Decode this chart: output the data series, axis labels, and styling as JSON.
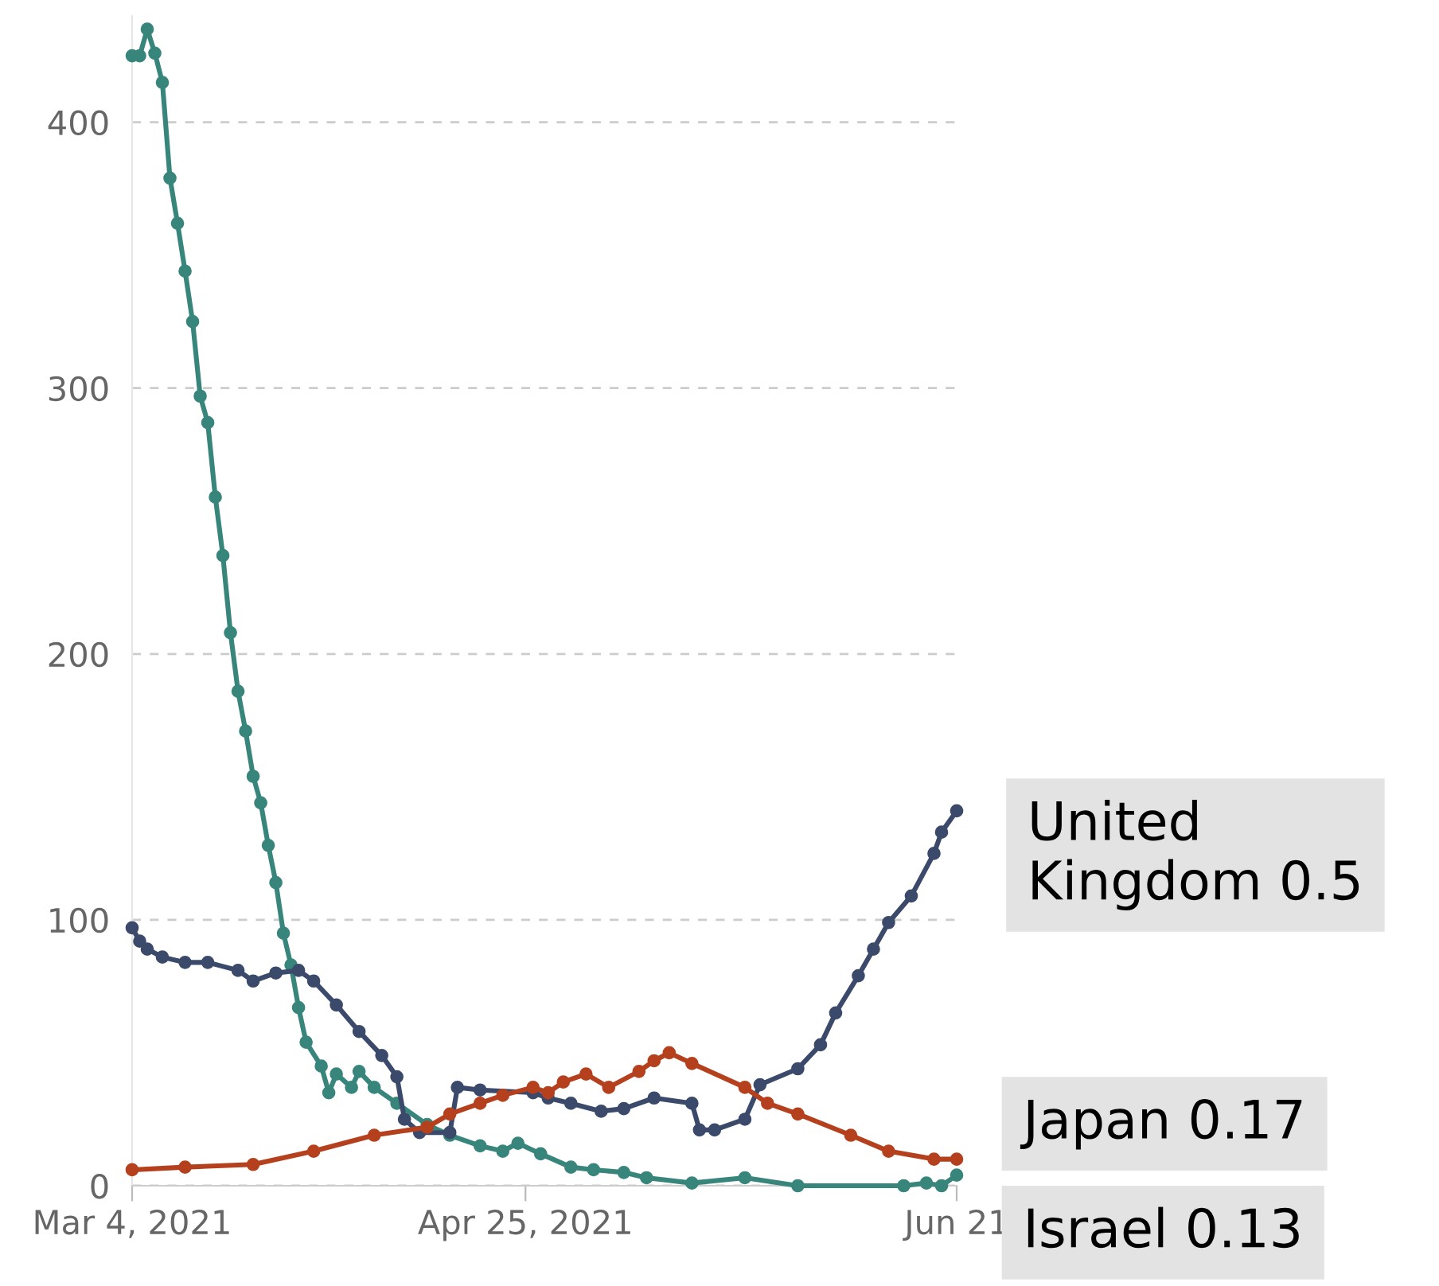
{
  "chart_data": {
    "type": "line",
    "marker": "circle",
    "line_style": "solid",
    "grid": "y",
    "legend": false,
    "xlim": [
      "2021-03-04",
      "2021-06-21"
    ],
    "ylim": [
      0,
      440
    ],
    "xticks": [
      {
        "value": "2021-03-04",
        "label": "Mar 4, 2021"
      },
      {
        "value": "2021-04-25",
        "label": "Apr 25, 2021"
      },
      {
        "value": "2021-06-21",
        "label": "Jun 21"
      }
    ],
    "yticks": [
      0,
      100,
      200,
      300,
      400
    ],
    "series": [
      {
        "color": "#38857c",
        "x": [
          "2021-03-04",
          "2021-03-05",
          "2021-03-06",
          "2021-03-07",
          "2021-03-08",
          "2021-03-09",
          "2021-03-10",
          "2021-03-11",
          "2021-03-12",
          "2021-03-13",
          "2021-03-14",
          "2021-03-15",
          "2021-03-16",
          "2021-03-17",
          "2021-03-18",
          "2021-03-19",
          "2021-03-20",
          "2021-03-21",
          "2021-03-22",
          "2021-03-23",
          "2021-03-24",
          "2021-03-25",
          "2021-03-26",
          "2021-03-27",
          "2021-03-29",
          "2021-03-30",
          "2021-03-31",
          "2021-04-02",
          "2021-04-03",
          "2021-04-05",
          "2021-04-08",
          "2021-04-12",
          "2021-04-15",
          "2021-04-19",
          "2021-04-22",
          "2021-04-24",
          "2021-04-27",
          "2021-05-01",
          "2021-05-04",
          "2021-05-08",
          "2021-05-11",
          "2021-05-17",
          "2021-05-24",
          "2021-05-31",
          "2021-06-14",
          "2021-06-17",
          "2021-06-19",
          "2021-06-21"
        ],
        "values": [
          425,
          425,
          435,
          426,
          415,
          379,
          362,
          344,
          325,
          297,
          287,
          259,
          237,
          208,
          186,
          171,
          154,
          144,
          128,
          114,
          95,
          83,
          67,
          54,
          45,
          35,
          42,
          37,
          43,
          37,
          31,
          23,
          19,
          15,
          13,
          16,
          12,
          7,
          6,
          5,
          3,
          1,
          3,
          0,
          0,
          1,
          0,
          4
        ]
      },
      {
        "color": "#3b4a6b",
        "x": [
          "2021-03-04",
          "2021-03-05",
          "2021-03-06",
          "2021-03-08",
          "2021-03-11",
          "2021-03-14",
          "2021-03-18",
          "2021-03-20",
          "2021-03-23",
          "2021-03-26",
          "2021-03-28",
          "2021-03-31",
          "2021-04-03",
          "2021-04-06",
          "2021-04-08",
          "2021-04-09",
          "2021-04-11",
          "2021-04-15",
          "2021-04-16",
          "2021-04-19",
          "2021-04-26",
          "2021-04-28",
          "2021-05-01",
          "2021-05-05",
          "2021-05-08",
          "2021-05-12",
          "2021-05-17",
          "2021-05-18",
          "2021-05-20",
          "2021-05-24",
          "2021-05-26",
          "2021-05-31",
          "2021-06-03",
          "2021-06-05",
          "2021-06-08",
          "2021-06-10",
          "2021-06-12",
          "2021-06-15",
          "2021-06-18",
          "2021-06-19",
          "2021-06-21"
        ],
        "values": [
          97,
          92,
          89,
          86,
          84,
          84,
          81,
          77,
          80,
          81,
          77,
          68,
          58,
          49,
          41,
          25,
          20,
          20,
          37,
          36,
          35,
          33,
          31,
          28,
          29,
          33,
          31,
          21,
          21,
          25,
          38,
          44,
          53,
          65,
          79,
          89,
          99,
          109,
          125,
          133,
          141
        ]
      },
      {
        "color": "#b5401e",
        "x": [
          "2021-03-04",
          "2021-03-11",
          "2021-03-20",
          "2021-03-28",
          "2021-04-05",
          "2021-04-12",
          "2021-04-15",
          "2021-04-19",
          "2021-04-22",
          "2021-04-26",
          "2021-04-28",
          "2021-04-30",
          "2021-05-03",
          "2021-05-06",
          "2021-05-10",
          "2021-05-12",
          "2021-05-14",
          "2021-05-17",
          "2021-05-24",
          "2021-05-27",
          "2021-05-31",
          "2021-06-07",
          "2021-06-12",
          "2021-06-18",
          "2021-06-21"
        ],
        "values": [
          6,
          7,
          8,
          13,
          19,
          22,
          27,
          31,
          34,
          37,
          35,
          39,
          42,
          37,
          43,
          47,
          50,
          46,
          37,
          31,
          27,
          19,
          13,
          10,
          10
        ]
      }
    ],
    "annotations": [
      {
        "text": "United\nKingdom 0.5",
        "x": "2021-06-21",
        "y": 141
      },
      {
        "text": "Japan 0.17",
        "x": "2021-06-21",
        "y": 10
      },
      {
        "text": "Israel 0.13",
        "x": "2021-06-21",
        "y": 4
      }
    ]
  }
}
